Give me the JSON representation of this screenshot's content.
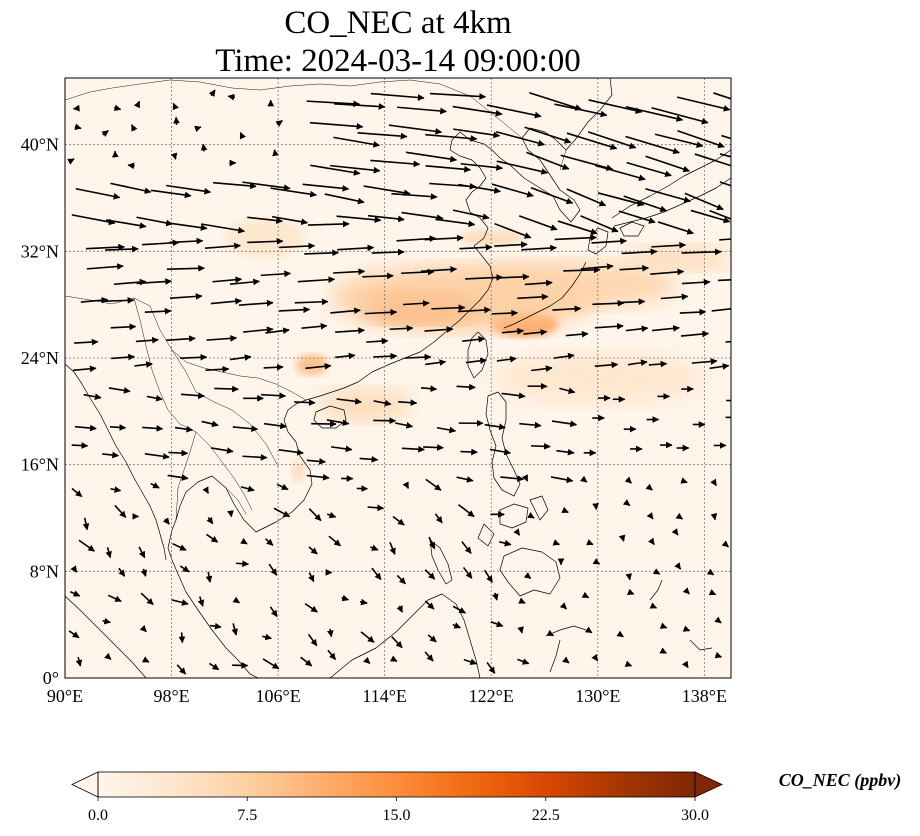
{
  "title": {
    "line1": "CO_NEC at 4km",
    "line2": "Time: 2024-03-14 09:00:00"
  },
  "map": {
    "extent": {
      "lon_min": 90,
      "lon_max": 140,
      "lat_min": 0,
      "lat_max": 45
    },
    "x_ticks": [
      {
        "lon": 90,
        "label": "90°E"
      },
      {
        "lon": 98,
        "label": "98°E"
      },
      {
        "lon": 106,
        "label": "106°E"
      },
      {
        "lon": 114,
        "label": "114°E"
      },
      {
        "lon": 122,
        "label": "122°E"
      },
      {
        "lon": 130,
        "label": "130°E"
      },
      {
        "lon": 138,
        "label": "138°E"
      }
    ],
    "y_ticks": [
      {
        "lat": 0,
        "label": "0°"
      },
      {
        "lat": 8,
        "label": "8°N"
      },
      {
        "lat": 16,
        "label": "16°N"
      },
      {
        "lat": 24,
        "label": "24°N"
      },
      {
        "lat": 32,
        "label": "32°N"
      },
      {
        "lat": 40,
        "label": "40°N"
      }
    ],
    "gridlines": true,
    "background_color": "#fff5eb",
    "plumes": [
      {
        "lon": 117,
        "lat": 27.8,
        "rlon": 4.5,
        "rlat": 1.2,
        "ppbv": 17
      },
      {
        "lon": 124.5,
        "lat": 26.6,
        "rlon": 2.5,
        "rlat": 1.0,
        "ppbv": 15
      },
      {
        "lon": 120,
        "lat": 28.5,
        "rlon": 10,
        "rlat": 2.5,
        "ppbv": 8
      },
      {
        "lon": 128,
        "lat": 29.5,
        "rlon": 8,
        "rlat": 1.8,
        "ppbv": 7
      },
      {
        "lon": 136,
        "lat": 31.5,
        "rlon": 4,
        "rlat": 1.0,
        "ppbv": 6
      },
      {
        "lon": 108.5,
        "lat": 23.5,
        "rlon": 1.2,
        "rlat": 0.8,
        "ppbv": 10
      },
      {
        "lon": 112.5,
        "lat": 20.5,
        "rlon": 3.5,
        "rlat": 1.3,
        "ppbv": 6
      },
      {
        "lon": 122,
        "lat": 33.0,
        "rlon": 2.5,
        "rlat": 0.6,
        "ppbv": 6
      },
      {
        "lon": 130,
        "lat": 22.5,
        "rlon": 8,
        "rlat": 2.0,
        "ppbv": 4
      },
      {
        "lon": 107.5,
        "lat": 15.5,
        "rlon": 0.5,
        "rlat": 0.8,
        "ppbv": 6
      },
      {
        "lon": 105,
        "lat": 33.0,
        "rlon": 3,
        "rlat": 1.5,
        "ppbv": 4
      }
    ]
  },
  "colorbar": {
    "min": 0,
    "max": 30,
    "colors": [
      "#fff5eb",
      "#fee6ce",
      "#fdd0a2",
      "#fdae6b",
      "#fd8d3c",
      "#f16913",
      "#d94801",
      "#a63603",
      "#7f2704"
    ],
    "ticks": [
      {
        "value": 0,
        "label": "0.0"
      },
      {
        "value": 7.5,
        "label": "7.5"
      },
      {
        "value": 15,
        "label": "15.0"
      },
      {
        "value": 22.5,
        "label": "22.5"
      },
      {
        "value": 30,
        "label": "30.0"
      }
    ],
    "label": "CO_NEC (ppbv)",
    "extend": "both"
  }
}
